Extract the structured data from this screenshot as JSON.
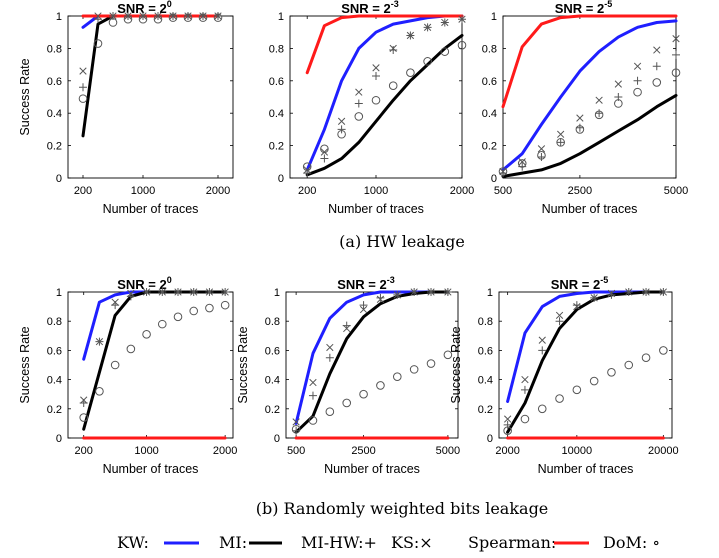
{
  "captions": {
    "a": "(a) HW leakage",
    "b": "(b) Randomly weighted bits leakage"
  },
  "legend": [
    {
      "label": "KW:",
      "marker": "line",
      "color": "#1f1fff"
    },
    {
      "label": "MI:",
      "marker": "line",
      "color": "#000000"
    },
    {
      "label": "MI-HW:+",
      "marker": "none",
      "color": "#000000"
    },
    {
      "label": "KS:×",
      "marker": "none",
      "color": "#000000"
    },
    {
      "label": "Spearman:",
      "marker": "line",
      "color": "#ff1a1a"
    },
    {
      "label": "DoM: ∘",
      "marker": "none",
      "color": "#000000"
    }
  ],
  "colors": {
    "KW": "#1f1fff",
    "MI": "#000000",
    "Spearman": "#ff1a1a",
    "markers": "#555555"
  },
  "chart_data": [
    {
      "type": "line",
      "title_base": "SNR = 2",
      "title_exp": "0",
      "xlabel": "Number of traces",
      "ylabel": "Success Rate",
      "xlim": [
        0,
        2200
      ],
      "ylim": [
        0,
        1
      ],
      "xticks": [
        200,
        1000,
        2000
      ],
      "xtick_labels": [
        "200",
        "1000",
        "2000"
      ],
      "yticks": [
        0,
        0.2,
        0.4,
        0.6,
        0.8,
        1
      ],
      "ytick_labels": [
        "0",
        "0.2",
        "0.4",
        "0.6",
        "0.8",
        "1"
      ],
      "x": [
        200,
        400,
        600,
        800,
        1000,
        1200,
        1400,
        1600,
        1800,
        2000
      ],
      "series": [
        {
          "name": "KW",
          "style": "line",
          "values": [
            0.93,
            1.0,
            1.0,
            1.0,
            1.0,
            1.0,
            1.0,
            1.0,
            1.0,
            1.0
          ]
        },
        {
          "name": "MI",
          "style": "line",
          "values": [
            0.26,
            0.95,
            1.0,
            1.0,
            1.0,
            1.0,
            1.0,
            1.0,
            1.0,
            1.0
          ]
        },
        {
          "name": "Spearman",
          "style": "line",
          "values": [
            1.0,
            1.0,
            1.0,
            1.0,
            1.0,
            1.0,
            1.0,
            1.0,
            1.0,
            1.0
          ]
        },
        {
          "name": "MI-HW",
          "style": "plus",
          "values": [
            0.56,
            0.98,
            1.0,
            1.0,
            1.0,
            1.0,
            1.0,
            1.0,
            1.0,
            1.0
          ]
        },
        {
          "name": "KS",
          "style": "cross",
          "values": [
            0.66,
            1.0,
            1.0,
            1.0,
            1.0,
            1.0,
            1.0,
            1.0,
            1.0,
            1.0
          ]
        },
        {
          "name": "DoM",
          "style": "circle",
          "values": [
            0.49,
            0.83,
            0.96,
            0.98,
            0.98,
            0.98,
            0.99,
            0.99,
            0.99,
            0.99
          ]
        }
      ]
    },
    {
      "type": "line",
      "title_base": "SNR = 2",
      "title_exp": "-3",
      "xlabel": "Number of traces",
      "ylabel": "",
      "xlim": [
        0,
        2000
      ],
      "ylim": [
        0,
        1
      ],
      "xticks": [
        200,
        1000,
        2000
      ],
      "xtick_labels": [
        "200",
        "1000",
        "2000"
      ],
      "yticks": [
        0,
        0.2,
        0.4,
        0.6,
        0.8,
        1
      ],
      "ytick_labels": [
        "0",
        "0.2",
        "0.4",
        "0.6",
        "0.8",
        "1"
      ],
      "x": [
        200,
        400,
        600,
        800,
        1000,
        1200,
        1400,
        1600,
        1800,
        2000
      ],
      "series": [
        {
          "name": "KW",
          "style": "line",
          "values": [
            0.05,
            0.3,
            0.6,
            0.8,
            0.9,
            0.95,
            0.97,
            0.99,
            1.0,
            1.0
          ]
        },
        {
          "name": "MI",
          "style": "line",
          "values": [
            0.02,
            0.06,
            0.12,
            0.22,
            0.35,
            0.48,
            0.6,
            0.7,
            0.8,
            0.88
          ]
        },
        {
          "name": "Spearman",
          "style": "line",
          "values": [
            0.65,
            0.94,
            0.99,
            1.0,
            1.0,
            1.0,
            1.0,
            1.0,
            1.0,
            1.0
          ]
        },
        {
          "name": "MI-HW",
          "style": "plus",
          "values": [
            0.03,
            0.12,
            0.3,
            0.46,
            0.63,
            0.79,
            0.88,
            0.93,
            0.96,
            0.98
          ]
        },
        {
          "name": "KS",
          "style": "cross",
          "values": [
            0.05,
            0.16,
            0.35,
            0.53,
            0.68,
            0.8,
            0.88,
            0.93,
            0.96,
            0.98
          ]
        },
        {
          "name": "DoM",
          "style": "circle",
          "values": [
            0.07,
            0.18,
            0.27,
            0.38,
            0.48,
            0.57,
            0.65,
            0.72,
            0.78,
            0.82
          ]
        }
      ]
    },
    {
      "type": "line",
      "title_base": "SNR = 2",
      "title_exp": "-5",
      "xlabel": "Number of traces",
      "ylabel": "",
      "xlim": [
        500,
        5000
      ],
      "ylim": [
        0,
        1
      ],
      "xticks": [
        500,
        2500,
        5000
      ],
      "xtick_labels": [
        "500",
        "2500",
        "5000"
      ],
      "yticks": [
        0,
        0.2,
        0.4,
        0.6,
        0.8,
        1
      ],
      "ytick_labels": [
        "0",
        "0.2",
        "0.4",
        "0.6",
        "0.8",
        "1"
      ],
      "x": [
        500,
        1000,
        1500,
        2000,
        2500,
        3000,
        3500,
        4000,
        4500,
        5000
      ],
      "series": [
        {
          "name": "KW",
          "style": "line",
          "values": [
            0.05,
            0.15,
            0.33,
            0.5,
            0.66,
            0.78,
            0.87,
            0.93,
            0.96,
            0.97
          ]
        },
        {
          "name": "MI",
          "style": "line",
          "values": [
            0.01,
            0.03,
            0.05,
            0.09,
            0.15,
            0.22,
            0.29,
            0.36,
            0.44,
            0.51
          ]
        },
        {
          "name": "Spearman",
          "style": "line",
          "values": [
            0.44,
            0.81,
            0.95,
            0.99,
            1.0,
            1.0,
            1.0,
            1.0,
            1.0,
            1.0
          ]
        },
        {
          "name": "MI-HW",
          "style": "plus",
          "values": [
            0.03,
            0.07,
            0.13,
            0.22,
            0.31,
            0.4,
            0.5,
            0.6,
            0.69,
            0.76
          ]
        },
        {
          "name": "KS",
          "style": "cross",
          "values": [
            0.04,
            0.1,
            0.18,
            0.27,
            0.37,
            0.48,
            0.58,
            0.69,
            0.79,
            0.86
          ]
        },
        {
          "name": "DoM",
          "style": "circle",
          "values": [
            0.04,
            0.09,
            0.14,
            0.22,
            0.3,
            0.39,
            0.46,
            0.53,
            0.59,
            0.65
          ]
        }
      ]
    },
    {
      "type": "line",
      "title_base": "SNR = 2",
      "title_exp": "0",
      "xlabel": "Number of traces",
      "ylabel": "Success Rate",
      "xlim": [
        0,
        2100
      ],
      "ylim": [
        0,
        1
      ],
      "xticks": [
        200,
        1000,
        2000
      ],
      "xtick_labels": [
        "200",
        "1000",
        "2000"
      ],
      "yticks": [
        0,
        0.2,
        0.4,
        0.6,
        0.8,
        1
      ],
      "ytick_labels": [
        "0",
        "0.2",
        "0.4",
        "0.6",
        "0.8",
        "1"
      ],
      "x": [
        200,
        400,
        600,
        800,
        1000,
        1200,
        1400,
        1600,
        1800,
        2000
      ],
      "series": [
        {
          "name": "KW",
          "style": "line",
          "values": [
            0.54,
            0.93,
            0.98,
            1.0,
            1.0,
            1.0,
            1.0,
            1.0,
            1.0,
            1.0
          ]
        },
        {
          "name": "MI",
          "style": "line",
          "values": [
            0.06,
            0.45,
            0.84,
            0.97,
            1.0,
            1.0,
            1.0,
            1.0,
            1.0,
            1.0
          ]
        },
        {
          "name": "Spearman",
          "style": "line",
          "values": [
            0.0,
            0.0,
            0.0,
            0.0,
            0.0,
            0.0,
            0.0,
            0.0,
            0.0,
            0.0
          ]
        },
        {
          "name": "MI-HW",
          "style": "plus",
          "values": [
            0.24,
            0.66,
            0.91,
            0.97,
            1.0,
            1.0,
            1.0,
            1.0,
            1.0,
            1.0
          ]
        },
        {
          "name": "KS",
          "style": "cross",
          "values": [
            0.26,
            0.66,
            0.93,
            0.99,
            1.0,
            1.0,
            1.0,
            1.0,
            1.0,
            1.0
          ]
        },
        {
          "name": "DoM",
          "style": "circle",
          "values": [
            0.14,
            0.32,
            0.5,
            0.61,
            0.71,
            0.78,
            0.83,
            0.87,
            0.89,
            0.91
          ]
        }
      ]
    },
    {
      "type": "line",
      "title_base": "SNR = 2",
      "title_exp": "-3",
      "xlabel": "Number of traces",
      "ylabel": "Success Rate",
      "xlim": [
        200,
        5300
      ],
      "ylim": [
        0,
        1
      ],
      "xticks": [
        500,
        2500,
        5000
      ],
      "xtick_labels": [
        "500",
        "2500",
        "5000"
      ],
      "yticks": [
        0,
        0.2,
        0.4,
        0.6,
        0.8,
        1
      ],
      "ytick_labels": [
        "0",
        "0.2",
        "0.4",
        "0.6",
        "0.8",
        "1"
      ],
      "x": [
        500,
        1000,
        1500,
        2000,
        2500,
        3000,
        3500,
        4000,
        4500,
        5000
      ],
      "series": [
        {
          "name": "KW",
          "style": "line",
          "values": [
            0.1,
            0.58,
            0.82,
            0.93,
            0.98,
            1.0,
            1.0,
            1.0,
            1.0,
            1.0
          ]
        },
        {
          "name": "MI",
          "style": "line",
          "values": [
            0.04,
            0.15,
            0.44,
            0.68,
            0.83,
            0.92,
            0.97,
            0.99,
            1.0,
            1.0
          ]
        },
        {
          "name": "Spearman",
          "style": "line",
          "values": [
            0.0,
            0.0,
            0.0,
            0.0,
            0.0,
            0.0,
            0.0,
            0.0,
            0.0,
            0.0
          ]
        },
        {
          "name": "MI-HW",
          "style": "plus",
          "values": [
            0.05,
            0.29,
            0.55,
            0.77,
            0.91,
            0.96,
            0.98,
            1.0,
            1.0,
            1.0
          ]
        },
        {
          "name": "KS",
          "style": "cross",
          "values": [
            0.11,
            0.38,
            0.62,
            0.75,
            0.88,
            0.95,
            0.98,
            1.0,
            1.0,
            1.0
          ]
        },
        {
          "name": "DoM",
          "style": "circle",
          "values": [
            0.06,
            0.12,
            0.18,
            0.24,
            0.3,
            0.36,
            0.42,
            0.47,
            0.51,
            0.57
          ]
        }
      ]
    },
    {
      "type": "line",
      "title_base": "SNR = 2",
      "title_exp": "-5",
      "xlabel": "Number of traces",
      "ylabel": "Success Rate",
      "xlim": [
        1000,
        21000
      ],
      "ylim": [
        0,
        1
      ],
      "xticks": [
        2000,
        10000,
        20000
      ],
      "xtick_labels": [
        "2000",
        "10000",
        "20000"
      ],
      "yticks": [
        0,
        0.2,
        0.4,
        0.6,
        0.8,
        1
      ],
      "ytick_labels": [
        "0",
        "0.2",
        "0.4",
        "0.6",
        "0.8",
        "1"
      ],
      "x": [
        2000,
        4000,
        6000,
        8000,
        10000,
        12000,
        14000,
        16000,
        18000,
        20000
      ],
      "series": [
        {
          "name": "KW",
          "style": "line",
          "values": [
            0.25,
            0.72,
            0.9,
            0.97,
            0.99,
            1.0,
            1.0,
            1.0,
            1.0,
            1.0
          ]
        },
        {
          "name": "MI",
          "style": "line",
          "values": [
            0.04,
            0.24,
            0.53,
            0.75,
            0.88,
            0.95,
            0.98,
            0.99,
            1.0,
            1.0
          ]
        },
        {
          "name": "Spearman",
          "style": "line",
          "values": [
            0.0,
            0.0,
            0.0,
            0.0,
            0.0,
            0.0,
            0.0,
            0.0,
            0.0,
            0.0
          ]
        },
        {
          "name": "MI-HW",
          "style": "plus",
          "values": [
            0.09,
            0.33,
            0.6,
            0.8,
            0.91,
            0.96,
            0.98,
            1.0,
            1.0,
            1.0
          ]
        },
        {
          "name": "KS",
          "style": "cross",
          "values": [
            0.13,
            0.4,
            0.67,
            0.84,
            0.9,
            0.96,
            0.99,
            1.0,
            1.0,
            1.0
          ]
        },
        {
          "name": "DoM",
          "style": "circle",
          "values": [
            0.05,
            0.13,
            0.2,
            0.27,
            0.33,
            0.39,
            0.45,
            0.5,
            0.55,
            0.6
          ]
        }
      ]
    }
  ]
}
